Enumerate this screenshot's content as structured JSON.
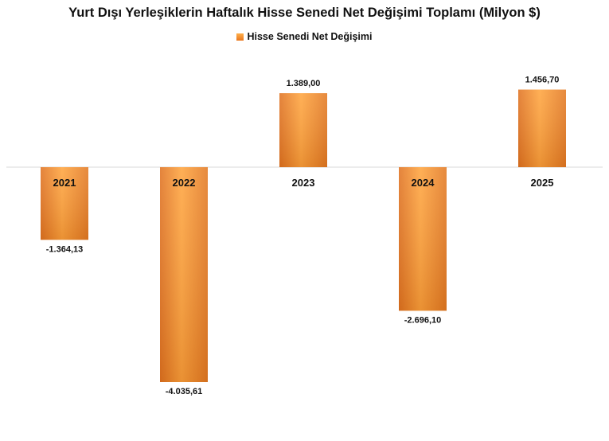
{
  "chart_data": {
    "type": "bar",
    "title": "Yurt Dışı Yerleşiklerin Haftalık Hisse Senedi Net Değişimi Toplamı (Milyon $)",
    "categories": [
      "2021",
      "2022",
      "2023",
      "2024",
      "2025"
    ],
    "series": [
      {
        "name": "Hisse Senedi Net Değişimi",
        "values": [
          -1364.13,
          -4035.61,
          1389.0,
          -2696.1,
          1456.7
        ],
        "labels": [
          "-1.364,13",
          "-4.035,61",
          "1.389,00",
          "-2.696,10",
          "1.456,70"
        ],
        "color": "#f08a2a"
      }
    ],
    "legend_position": "top",
    "grid": false
  }
}
